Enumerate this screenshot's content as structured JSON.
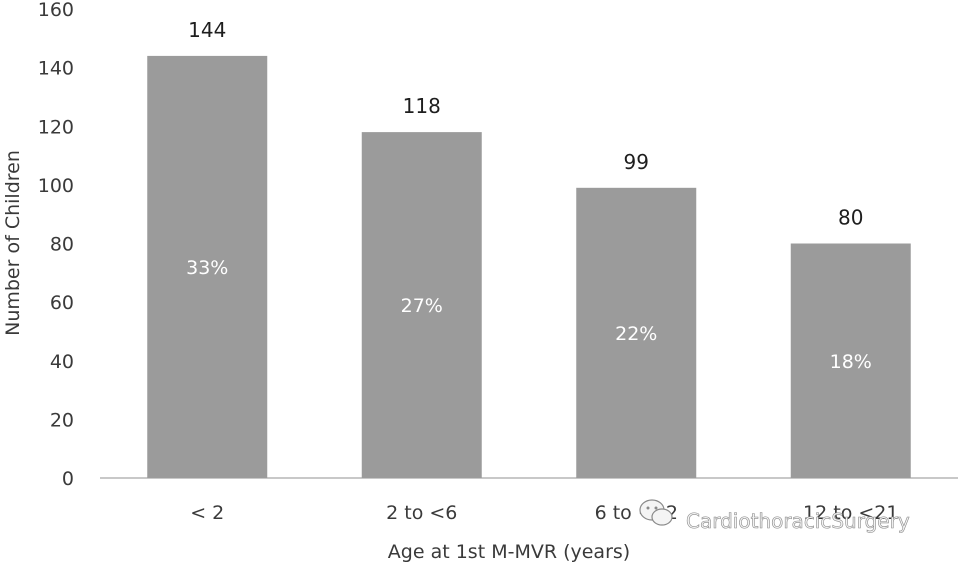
{
  "chart_data": {
    "type": "bar",
    "title": "",
    "xlabel": "Age at 1st M-MVR (years)",
    "ylabel": "Number of Children",
    "categories": [
      "< 2",
      "2 to <6",
      "6 to <12",
      "12 to <21"
    ],
    "values": [
      144,
      118,
      99,
      80
    ],
    "percent_labels": [
      "33%",
      "27%",
      "22%",
      "18%"
    ],
    "ylim": [
      0,
      160
    ],
    "yticks": [
      0,
      20,
      40,
      60,
      80,
      100,
      120,
      140,
      160
    ],
    "grid": false,
    "bar_color": "#9b9b9b"
  },
  "watermark": {
    "text": "CardiothoracicSurgery",
    "icon": "wechat-icon"
  }
}
